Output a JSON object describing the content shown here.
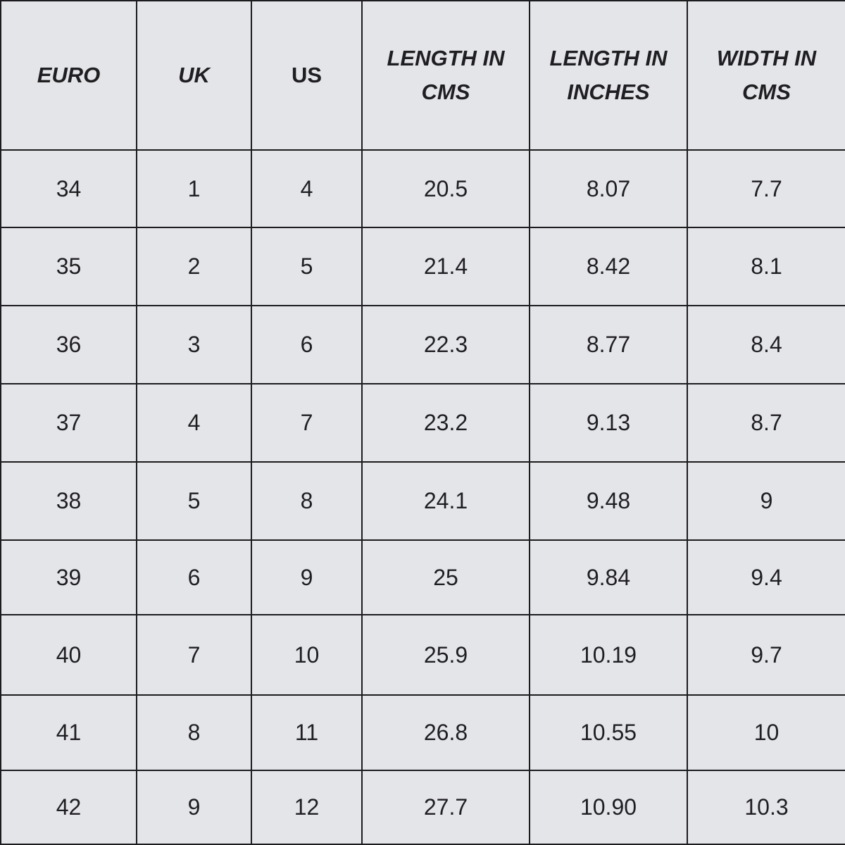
{
  "chart_data": {
    "type": "table",
    "columns": [
      "EURO",
      "UK",
      "US",
      "LENGTH IN CMS",
      "LENGTH IN INCHES",
      "WIDTH IN CMS"
    ],
    "rows": [
      [
        "34",
        "1",
        "4",
        "20.5",
        "8.07",
        "7.7"
      ],
      [
        "35",
        "2",
        "5",
        "21.4",
        "8.42",
        "8.1"
      ],
      [
        "36",
        "3",
        "6",
        "22.3",
        "8.77",
        "8.4"
      ],
      [
        "37",
        "4",
        "7",
        "23.2",
        "9.13",
        "8.7"
      ],
      [
        "38",
        "5",
        "8",
        "24.1",
        "9.48",
        "9"
      ],
      [
        "39",
        "6",
        "9",
        "25",
        "9.84",
        "9.4"
      ],
      [
        "40",
        "7",
        "10",
        "25.9",
        "10.19",
        "9.7"
      ],
      [
        "41",
        "8",
        "11",
        "26.8",
        "10.55",
        "10"
      ],
      [
        "42",
        "9",
        "12",
        "27.7",
        "10.90",
        "10.3"
      ]
    ]
  },
  "colors": {
    "background": "#e4e5e9",
    "border": "#1c1c1e",
    "text": "#1f1f22"
  }
}
